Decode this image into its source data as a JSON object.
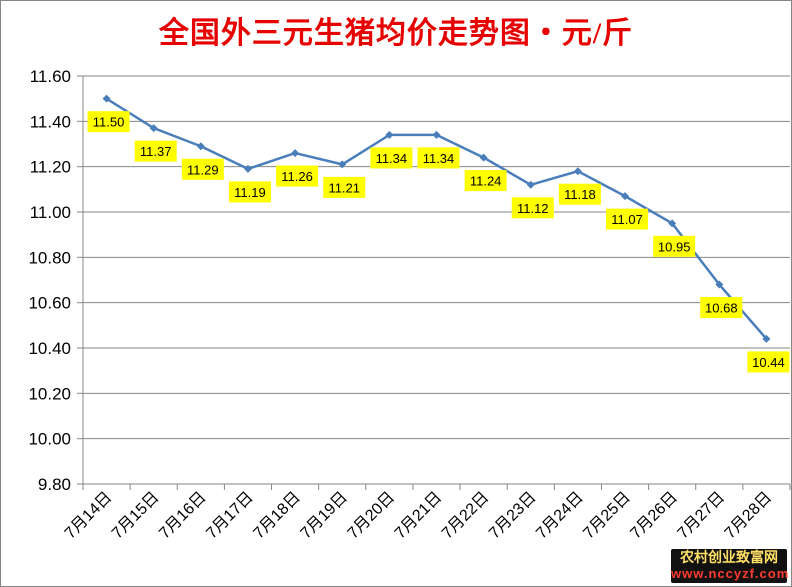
{
  "chart_data": {
    "type": "line",
    "title": "全国外三元生猪均价走势图・元/斤",
    "categories": [
      "7月14日",
      "7月15日",
      "7月16日",
      "7月17日",
      "7月18日",
      "7月19日",
      "7月20日",
      "7月21日",
      "7月22日",
      "7月23日",
      "7月24日",
      "7月25日",
      "7月26日",
      "7月27日",
      "7月28日"
    ],
    "values": [
      11.5,
      11.37,
      11.29,
      11.19,
      11.26,
      11.21,
      11.34,
      11.34,
      11.24,
      11.12,
      11.18,
      11.07,
      10.95,
      10.68,
      10.44
    ],
    "data_labels": [
      "11.50",
      "11.37",
      "11.29",
      "11.19",
      "11.26",
      "11.21",
      "11.34",
      "11.34",
      "11.24",
      "11.12",
      "11.18",
      "11.07",
      "10.95",
      "10.68",
      "10.44"
    ],
    "ylim": [
      9.8,
      11.6
    ],
    "yticks": [
      "9.80",
      "10.00",
      "10.20",
      "10.40",
      "10.60",
      "10.80",
      "11.00",
      "11.20",
      "11.40",
      "11.60"
    ],
    "grid": true,
    "legend": "none",
    "line_color": "#4a7ebb",
    "label_bg_color": "#ffff00"
  },
  "watermark": {
    "name": "农村创业致富网",
    "url": "www.nccyzf.com"
  }
}
